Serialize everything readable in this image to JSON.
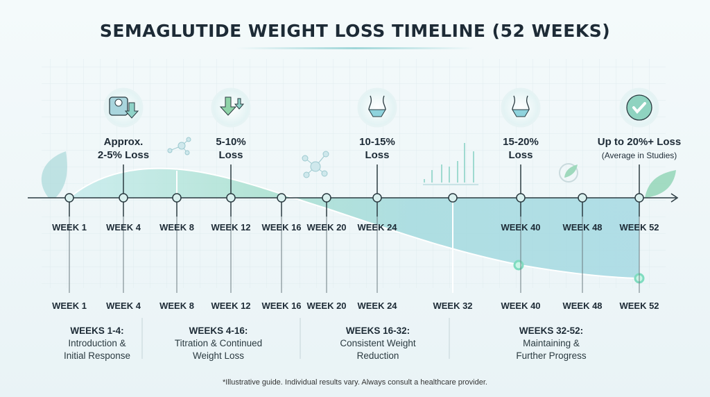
{
  "title": "SEMAGLUTIDE WEIGHT LOSS TIMELINE (52 WEEKS)",
  "colors": {
    "accent": "#8fd3c8",
    "fill": "#a8dce0",
    "line": "#2a3a40",
    "node": "#d9f0ee"
  },
  "top_weeks": [
    "WEEK 1",
    "WEEK 4",
    "WEEK 8",
    "WEEK 12",
    "WEEK 16",
    "WEEK 20",
    "WEEK 24",
    "WEEK 40",
    "WEEK 48",
    "WEEK 52"
  ],
  "bottom_weeks": [
    "WEEK 1",
    "WEEK 4",
    "WEEK 8",
    "WEEK 12",
    "WEEK 16",
    "WEEK 20",
    "WEEK 24",
    "WEEK 32",
    "WEEK 40",
    "WEEK 48",
    "WEEK 52"
  ],
  "milestones": [
    {
      "week": "WEEK 4",
      "line1": "Approx.",
      "line2": "2-5% Loss",
      "icon": "scale-down-icon"
    },
    {
      "week": "WEEK 12",
      "line1": "5-10%",
      "line2": "Loss",
      "icon": "arrows-down-icon"
    },
    {
      "week": "WEEK 24",
      "line1": "10-15%",
      "line2": "Loss",
      "icon": "waist-icon"
    },
    {
      "week": "WEEK 40",
      "line1": "15-20%",
      "line2": "Loss",
      "icon": "waist-icon"
    },
    {
      "week": "WEEK 52",
      "line1": "Up to 20%+ Loss",
      "line2": "(Average in Studies)",
      "icon": "check-icon"
    }
  ],
  "phases": [
    {
      "title": "WEEKS 1-4:",
      "line1": "Introduction &",
      "line2": "Initial Response"
    },
    {
      "title": "WEEKS 4-16:",
      "line1": "Titration & Continued",
      "line2": "Weight Loss"
    },
    {
      "title": "WEEKS 16-32:",
      "line1": "Consistent Weight",
      "line2": "Reduction"
    },
    {
      "title": "WEEKS 32-52:",
      "line1": "Maintaining &",
      "line2": "Further Progress"
    }
  ],
  "footer": "*Illustrative guide. Individual results vary. Always consult a healthcare provider."
}
